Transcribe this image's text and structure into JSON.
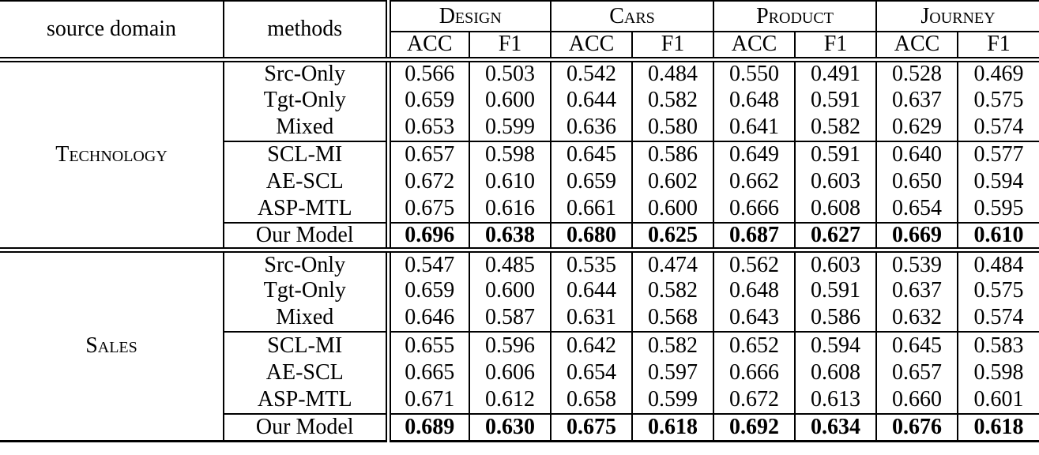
{
  "table": {
    "header": {
      "source_domain_label": "source domain",
      "methods_label": "methods",
      "groups": [
        {
          "label": "Design"
        },
        {
          "label": "Cars"
        },
        {
          "label": "Product"
        },
        {
          "label": "Journey"
        }
      ],
      "metric_labels": [
        "ACC",
        "F1"
      ]
    },
    "text_color": "#000000",
    "background_color": "#ffffff",
    "blocks": [
      {
        "source_domain": "Technology",
        "rows": [
          {
            "method": "Src-Only",
            "bold_values": false,
            "rule_above": false,
            "values": [
              "0.566",
              "0.503",
              "0.542",
              "0.484",
              "0.550",
              "0.491",
              "0.528",
              "0.469"
            ]
          },
          {
            "method": "Tgt-Only",
            "bold_values": false,
            "rule_above": false,
            "values": [
              "0.659",
              "0.600",
              "0.644",
              "0.582",
              "0.648",
              "0.591",
              "0.637",
              "0.575"
            ]
          },
          {
            "method": "Mixed",
            "bold_values": false,
            "rule_above": false,
            "values": [
              "0.653",
              "0.599",
              "0.636",
              "0.580",
              "0.641",
              "0.582",
              "0.629",
              "0.574"
            ]
          },
          {
            "method": "SCL-MI",
            "bold_values": false,
            "rule_above": true,
            "values": [
              "0.657",
              "0.598",
              "0.645",
              "0.586",
              "0.649",
              "0.591",
              "0.640",
              "0.577"
            ]
          },
          {
            "method": "AE-SCL",
            "bold_values": false,
            "rule_above": false,
            "values": [
              "0.672",
              "0.610",
              "0.659",
              "0.602",
              "0.662",
              "0.603",
              "0.650",
              "0.594"
            ]
          },
          {
            "method": "ASP-MTL",
            "bold_values": false,
            "rule_above": false,
            "values": [
              "0.675",
              "0.616",
              "0.661",
              "0.600",
              "0.666",
              "0.608",
              "0.654",
              "0.595"
            ]
          },
          {
            "method": "Our Model",
            "bold_values": true,
            "rule_above": true,
            "values": [
              "0.696",
              "0.638",
              "0.680",
              "0.625",
              "0.687",
              "0.627",
              "0.669",
              "0.610"
            ]
          }
        ]
      },
      {
        "source_domain": "Sales",
        "rows": [
          {
            "method": "Src-Only",
            "bold_values": false,
            "rule_above": false,
            "values": [
              "0.547",
              "0.485",
              "0.535",
              "0.474",
              "0.562",
              "0.603",
              "0.539",
              "0.484"
            ]
          },
          {
            "method": "Tgt-Only",
            "bold_values": false,
            "rule_above": false,
            "values": [
              "0.659",
              "0.600",
              "0.644",
              "0.582",
              "0.648",
              "0.591",
              "0.637",
              "0.575"
            ]
          },
          {
            "method": "Mixed",
            "bold_values": false,
            "rule_above": false,
            "values": [
              "0.646",
              "0.587",
              "0.631",
              "0.568",
              "0.643",
              "0.586",
              "0.632",
              "0.574"
            ]
          },
          {
            "method": "SCL-MI",
            "bold_values": false,
            "rule_above": true,
            "values": [
              "0.655",
              "0.596",
              "0.642",
              "0.582",
              "0.652",
              "0.594",
              "0.645",
              "0.583"
            ]
          },
          {
            "method": "AE-SCL",
            "bold_values": false,
            "rule_above": false,
            "values": [
              "0.665",
              "0.606",
              "0.654",
              "0.597",
              "0.666",
              "0.608",
              "0.657",
              "0.598"
            ]
          },
          {
            "method": "ASP-MTL",
            "bold_values": false,
            "rule_above": false,
            "values": [
              "0.671",
              "0.612",
              "0.658",
              "0.599",
              "0.672",
              "0.613",
              "0.660",
              "0.601"
            ]
          },
          {
            "method": "Our Model",
            "bold_values": true,
            "rule_above": true,
            "values": [
              "0.689",
              "0.630",
              "0.675",
              "0.618",
              "0.692",
              "0.634",
              "0.676",
              "0.618"
            ]
          }
        ]
      }
    ]
  }
}
